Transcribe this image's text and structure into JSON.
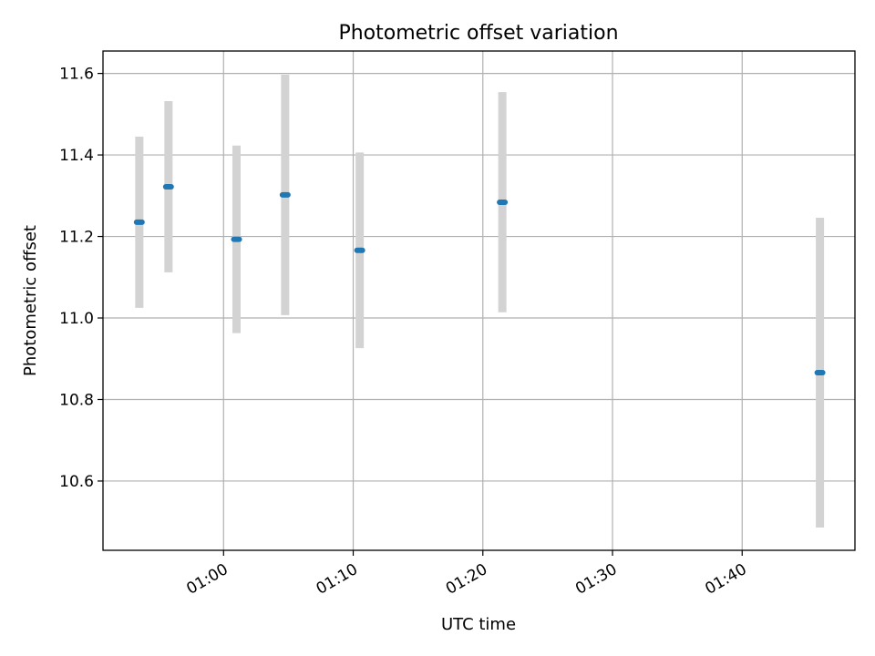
{
  "chart_data": {
    "type": "scatter",
    "title": "Photometric offset variation",
    "xlabel": "UTC time",
    "ylabel": "Photometric offset",
    "grid": true,
    "xlim_minutes": [
      50.7,
      108.7
    ],
    "ylim": [
      10.43,
      11.655
    ],
    "x_tick_minutes": [
      60,
      70,
      80,
      90,
      100
    ],
    "x_tick_labels": [
      "01:00",
      "01:10",
      "01:20",
      "01:30",
      "01:40"
    ],
    "y_ticks": [
      10.6,
      10.8,
      11.0,
      11.2,
      11.4,
      11.6
    ],
    "y_tick_labels": [
      "10.6",
      "10.8",
      "11.0",
      "11.2",
      "11.4",
      "11.6"
    ],
    "points": [
      {
        "time": "00:53:30",
        "minutes": 53.5,
        "y": 11.235,
        "err": 0.21
      },
      {
        "time": "00:55:45",
        "minutes": 55.75,
        "y": 11.322,
        "err": 0.21
      },
      {
        "time": "01:01:00",
        "minutes": 61.0,
        "y": 11.193,
        "err": 0.23
      },
      {
        "time": "01:04:45",
        "minutes": 64.75,
        "y": 11.302,
        "err": 0.295
      },
      {
        "time": "01:10:30",
        "minutes": 70.5,
        "y": 11.166,
        "err": 0.24
      },
      {
        "time": "01:21:30",
        "minutes": 81.5,
        "y": 11.284,
        "err": 0.27
      },
      {
        "time": "01:46:00",
        "minutes": 106.0,
        "y": 10.866,
        "err": 0.38
      }
    ],
    "colors": {
      "marker": "#1f77b4",
      "errorbar": "#d3d3d3"
    }
  }
}
